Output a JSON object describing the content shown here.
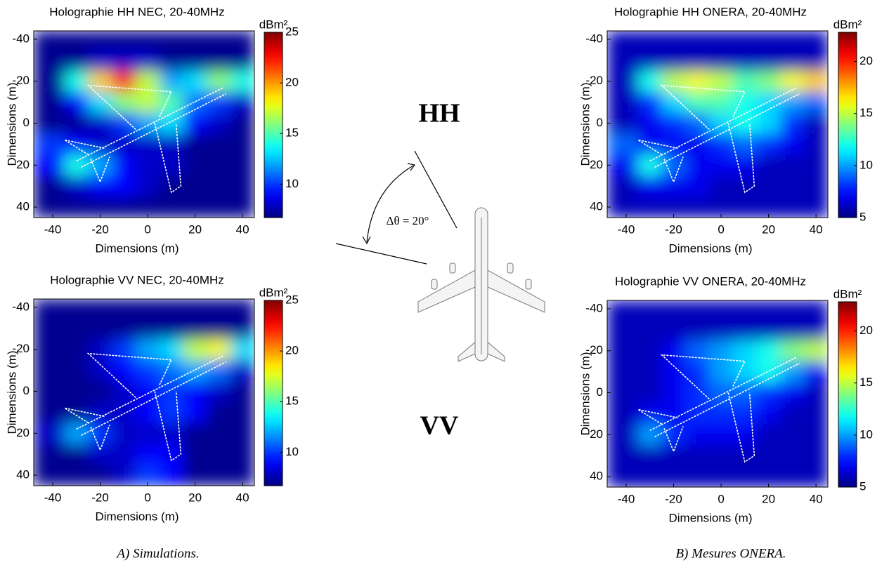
{
  "chart_data": [
    {
      "type": "heatmap",
      "title": "Holographie HH NEC, 20-40MHz",
      "xlabel": "Dimensions (m)",
      "ylabel": "Dimensions (m)",
      "x": [
        -40,
        -30,
        -20,
        -10,
        0,
        10,
        20,
        30,
        40
      ],
      "y": [
        -40,
        -30,
        -20,
        -10,
        0,
        10,
        20,
        30,
        40
      ],
      "z": [
        [
          7,
          7,
          7,
          7,
          7,
          7,
          7,
          7,
          7
        ],
        [
          7,
          7,
          8,
          8,
          8,
          7,
          7,
          7,
          7
        ],
        [
          7,
          14,
          19,
          22,
          17,
          12,
          13,
          16,
          14
        ],
        [
          7,
          9,
          13,
          16,
          17,
          15,
          11,
          10,
          8
        ],
        [
          7,
          7,
          8,
          10,
          12,
          13,
          9,
          8,
          7
        ],
        [
          10,
          9,
          8,
          8,
          8,
          8,
          7,
          7,
          7
        ],
        [
          9,
          14,
          12,
          9,
          8,
          8,
          7,
          7,
          7
        ],
        [
          7,
          8,
          9,
          9,
          8,
          7,
          7,
          7,
          7
        ],
        [
          7,
          7,
          7,
          7,
          7,
          7,
          7,
          7,
          7
        ]
      ],
      "xlim": [
        -48,
        45
      ],
      "ylim": [
        -44,
        45
      ],
      "y_inverted": true,
      "xticks": [
        -40,
        -20,
        0,
        20,
        40
      ],
      "yticks": [
        -40,
        -20,
        0,
        20,
        40
      ],
      "colormap": "jet",
      "clim": [
        6.7,
        25
      ],
      "cticks": [
        10,
        15,
        20,
        25
      ],
      "colorbar_label": "dBm²"
    },
    {
      "type": "heatmap",
      "title": "Holographie VV NEC, 20-40MHz",
      "xlabel": "Dimensions (m)",
      "ylabel": "Dimensions (m)",
      "x": [
        -40,
        -30,
        -20,
        -10,
        0,
        10,
        20,
        30,
        40
      ],
      "y": [
        -40,
        -30,
        -20,
        -10,
        0,
        10,
        20,
        30,
        40
      ],
      "z": [
        [
          7,
          7,
          7,
          7,
          7,
          7,
          7,
          7,
          7
        ],
        [
          7,
          7,
          7,
          7,
          7,
          7,
          7,
          7,
          7
        ],
        [
          7,
          7,
          8,
          10,
          12,
          13,
          17,
          18,
          13
        ],
        [
          7,
          7,
          8,
          9,
          10,
          11,
          12,
          11,
          8
        ],
        [
          7,
          7,
          7,
          8,
          9,
          10,
          9,
          8,
          7
        ],
        [
          7,
          7,
          8,
          8,
          9,
          10,
          9,
          7,
          7
        ],
        [
          8,
          12,
          10,
          8,
          8,
          8,
          7,
          7,
          7
        ],
        [
          7,
          7,
          8,
          8,
          9,
          9,
          7,
          7,
          7
        ],
        [
          7,
          7,
          7,
          8,
          10,
          9,
          7,
          7,
          7
        ]
      ],
      "xlim": [
        -48,
        45
      ],
      "ylim": [
        -44,
        45
      ],
      "y_inverted": true,
      "xticks": [
        -40,
        -20,
        0,
        20,
        40
      ],
      "yticks": [
        -40,
        -20,
        0,
        20,
        40
      ],
      "colormap": "jet",
      "clim": [
        6.7,
        25
      ],
      "cticks": [
        10,
        15,
        20,
        25
      ],
      "colorbar_label": "dBm²"
    },
    {
      "type": "heatmap",
      "title": "Holographie HH ONERA, 20-40MHz",
      "xlabel": "Dimensions (m)",
      "ylabel": "Dimensions (m)",
      "x": [
        -40,
        -30,
        -20,
        -10,
        0,
        10,
        20,
        30,
        40
      ],
      "y": [
        -40,
        -30,
        -20,
        -10,
        0,
        10,
        20,
        30,
        40
      ],
      "z": [
        [
          6,
          6,
          6,
          6,
          6,
          6,
          6,
          6,
          6
        ],
        [
          6,
          6,
          6,
          6,
          6,
          6,
          6,
          6,
          6
        ],
        [
          6,
          12,
          15,
          16,
          15,
          13,
          14,
          16,
          17
        ],
        [
          6,
          8,
          11,
          13,
          13,
          12,
          11,
          10,
          9
        ],
        [
          6,
          7,
          8,
          9,
          11,
          12,
          11,
          8,
          6
        ],
        [
          9,
          7,
          7,
          7,
          8,
          9,
          8,
          7,
          6
        ],
        [
          7,
          12,
          9,
          7,
          7,
          7,
          6,
          6,
          6
        ],
        [
          6,
          7,
          7,
          7,
          6,
          6,
          6,
          6,
          6
        ],
        [
          6,
          6,
          6,
          6,
          6,
          6,
          6,
          6,
          6
        ]
      ],
      "xlim": [
        -48,
        45
      ],
      "ylim": [
        -44,
        45
      ],
      "y_inverted": true,
      "xticks": [
        -40,
        -20,
        0,
        20,
        40
      ],
      "yticks": [
        -40,
        -20,
        0,
        20,
        40
      ],
      "colormap": "jet",
      "clim": [
        5,
        22.8
      ],
      "cticks": [
        5,
        10,
        15,
        20
      ],
      "colorbar_label": "dBm²"
    },
    {
      "type": "heatmap",
      "title": "Holographie VV ONERA, 20-40MHz",
      "xlabel": "Dimensions (m)",
      "ylabel": "Dimensions (m)",
      "x": [
        -40,
        -30,
        -20,
        -10,
        0,
        10,
        20,
        30,
        40
      ],
      "y": [
        -40,
        -30,
        -20,
        -10,
        0,
        10,
        20,
        30,
        40
      ],
      "z": [
        [
          6,
          6,
          6,
          6,
          6,
          6,
          6,
          6,
          6
        ],
        [
          6,
          6,
          6,
          6,
          6,
          6,
          6,
          6,
          6
        ],
        [
          6,
          6,
          7,
          9,
          10,
          11,
          12,
          14,
          15
        ],
        [
          6,
          6,
          7,
          8,
          10,
          11,
          12,
          10,
          7
        ],
        [
          6,
          6,
          7,
          8,
          9,
          9,
          8,
          7,
          6
        ],
        [
          6,
          7,
          7,
          8,
          8,
          8,
          7,
          6,
          6
        ],
        [
          6,
          10,
          8,
          7,
          7,
          7,
          6,
          6,
          6
        ],
        [
          6,
          6,
          6,
          6,
          6,
          6,
          6,
          6,
          6
        ],
        [
          6,
          6,
          6,
          6,
          6,
          6,
          6,
          6,
          6
        ]
      ],
      "xlim": [
        -48,
        45
      ],
      "ylim": [
        -44,
        45
      ],
      "y_inverted": true,
      "xticks": [
        -40,
        -20,
        0,
        20,
        40
      ],
      "yticks": [
        -40,
        -20,
        0,
        20,
        40
      ],
      "colormap": "jet",
      "clim": [
        5,
        22.8
      ],
      "cticks": [
        5,
        10,
        15,
        20
      ],
      "colorbar_label": "dBm²"
    }
  ],
  "figure": {
    "hh_label": "HH",
    "vv_label": "VV",
    "angle_label": "Δθ = 20°",
    "caption_a": "A) Simulations.",
    "caption_b": "B) Mesures ONERA."
  }
}
